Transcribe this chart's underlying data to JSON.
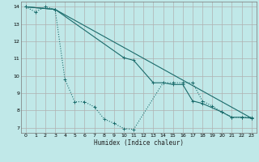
{
  "xlabel": "Humidex (Indice chaleur)",
  "bg_color": "#c0e8e8",
  "grid_color": "#b0b0b0",
  "line_color": "#1a6b6b",
  "xlim": [
    -0.5,
    23.5
  ],
  "ylim": [
    6.7,
    14.3
  ],
  "yticks": [
    7,
    8,
    9,
    10,
    11,
    12,
    13,
    14
  ],
  "xticks": [
    0,
    1,
    2,
    3,
    4,
    5,
    6,
    7,
    8,
    9,
    10,
    11,
    12,
    13,
    14,
    15,
    16,
    17,
    18,
    19,
    20,
    21,
    22,
    23
  ],
  "line1_x": [
    0,
    1,
    2,
    3,
    4,
    5,
    6,
    7,
    8,
    9,
    10,
    11,
    14,
    15,
    16,
    17,
    18,
    19,
    20,
    21,
    22,
    23
  ],
  "line1_y": [
    14.0,
    13.7,
    14.0,
    13.85,
    9.8,
    8.5,
    8.5,
    8.2,
    7.5,
    7.25,
    6.95,
    6.9,
    9.6,
    9.6,
    9.6,
    9.6,
    8.55,
    8.25,
    7.9,
    7.6,
    7.6,
    7.6
  ],
  "line2_x": [
    0,
    3,
    23
  ],
  "line2_y": [
    14.0,
    13.85,
    7.55
  ],
  "line3_x": [
    0,
    3,
    10,
    11,
    13,
    14,
    15,
    16,
    17,
    18,
    20,
    21,
    22,
    23
  ],
  "line3_y": [
    14.0,
    13.85,
    11.05,
    10.9,
    9.6,
    9.6,
    9.5,
    9.5,
    8.55,
    8.4,
    7.9,
    7.6,
    7.6,
    7.55
  ]
}
